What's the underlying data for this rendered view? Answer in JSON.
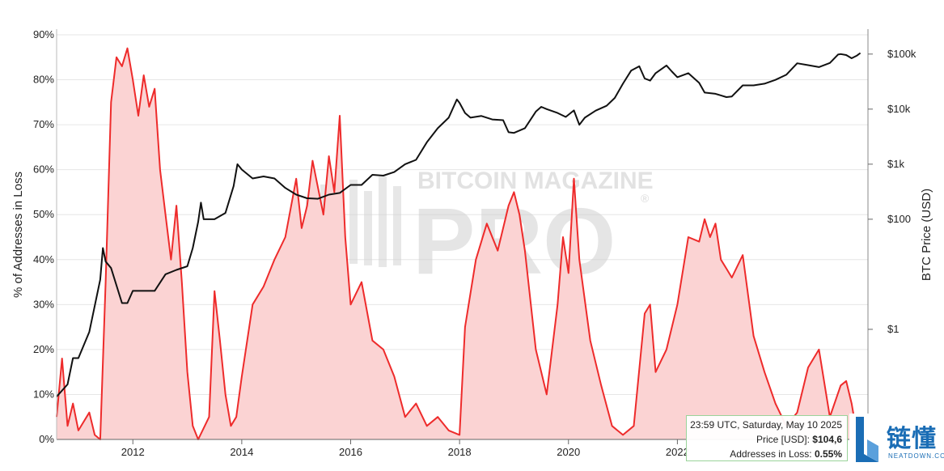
{
  "chart_data": {
    "type": "line",
    "title": "",
    "xlabel": "",
    "ylabel_left": "% of Addresses in Loss",
    "ylabel_right": "BTC Price (USD)",
    "x_ticks": [
      "2012",
      "2014",
      "2016",
      "2018",
      "2020",
      "2022"
    ],
    "x_range": [
      2010.6,
      2025.5
    ],
    "y_left_ticks": [
      "0%",
      "10%",
      "20%",
      "30%",
      "40%",
      "50%",
      "60%",
      "70%",
      "80%",
      "90%"
    ],
    "y_left_range": [
      0,
      90
    ],
    "y_right_ticks": [
      "$1",
      "$100",
      "$1k",
      "$10k",
      "$100k"
    ],
    "y_right_scale": "log",
    "grid": true,
    "series": [
      {
        "name": "% of Addresses in Loss",
        "color": "#ee2b2b",
        "fill": "#fbd3d3",
        "points": [
          [
            2010.6,
            5
          ],
          [
            2010.7,
            18
          ],
          [
            2010.8,
            3
          ],
          [
            2010.9,
            8
          ],
          [
            2011.0,
            2
          ],
          [
            2011.2,
            6
          ],
          [
            2011.3,
            1
          ],
          [
            2011.4,
            0
          ],
          [
            2011.5,
            35
          ],
          [
            2011.6,
            75
          ],
          [
            2011.7,
            85
          ],
          [
            2011.8,
            83
          ],
          [
            2011.9,
            87
          ],
          [
            2012.0,
            80
          ],
          [
            2012.1,
            72
          ],
          [
            2012.2,
            81
          ],
          [
            2012.3,
            74
          ],
          [
            2012.4,
            78
          ],
          [
            2012.5,
            60
          ],
          [
            2012.6,
            50
          ],
          [
            2012.7,
            40
          ],
          [
            2012.8,
            52
          ],
          [
            2012.9,
            35
          ],
          [
            2013.0,
            15
          ],
          [
            2013.1,
            3
          ],
          [
            2013.2,
            0
          ],
          [
            2013.4,
            5
          ],
          [
            2013.5,
            33
          ],
          [
            2013.6,
            22
          ],
          [
            2013.7,
            10
          ],
          [
            2013.8,
            3
          ],
          [
            2013.9,
            5
          ],
          [
            2014.0,
            14
          ],
          [
            2014.2,
            30
          ],
          [
            2014.4,
            34
          ],
          [
            2014.6,
            40
          ],
          [
            2014.8,
            45
          ],
          [
            2015.0,
            58
          ],
          [
            2015.1,
            47
          ],
          [
            2015.2,
            52
          ],
          [
            2015.3,
            62
          ],
          [
            2015.4,
            56
          ],
          [
            2015.5,
            50
          ],
          [
            2015.6,
            63
          ],
          [
            2015.7,
            55
          ],
          [
            2015.8,
            72
          ],
          [
            2015.9,
            45
          ],
          [
            2016.0,
            30
          ],
          [
            2016.2,
            35
          ],
          [
            2016.4,
            22
          ],
          [
            2016.6,
            20
          ],
          [
            2016.8,
            14
          ],
          [
            2017.0,
            5
          ],
          [
            2017.2,
            8
          ],
          [
            2017.4,
            3
          ],
          [
            2017.6,
            5
          ],
          [
            2017.8,
            2
          ],
          [
            2018.0,
            1
          ],
          [
            2018.1,
            25
          ],
          [
            2018.3,
            40
          ],
          [
            2018.5,
            48
          ],
          [
            2018.7,
            42
          ],
          [
            2018.9,
            52
          ],
          [
            2019.0,
            55
          ],
          [
            2019.1,
            50
          ],
          [
            2019.2,
            42
          ],
          [
            2019.4,
            20
          ],
          [
            2019.6,
            10
          ],
          [
            2019.8,
            30
          ],
          [
            2019.9,
            45
          ],
          [
            2020.0,
            37
          ],
          [
            2020.1,
            58
          ],
          [
            2020.2,
            40
          ],
          [
            2020.4,
            22
          ],
          [
            2020.6,
            12
          ],
          [
            2020.8,
            3
          ],
          [
            2021.0,
            1
          ],
          [
            2021.2,
            3
          ],
          [
            2021.4,
            28
          ],
          [
            2021.5,
            30
          ],
          [
            2021.6,
            15
          ],
          [
            2021.8,
            20
          ],
          [
            2022.0,
            30
          ],
          [
            2022.2,
            45
          ],
          [
            2022.4,
            44
          ],
          [
            2022.5,
            49
          ],
          [
            2022.6,
            45
          ],
          [
            2022.7,
            48
          ],
          [
            2022.8,
            40
          ],
          [
            2022.9,
            38
          ],
          [
            2023.0,
            36
          ],
          [
            2023.2,
            41
          ],
          [
            2023.4,
            23
          ],
          [
            2023.6,
            15
          ],
          [
            2023.8,
            8
          ],
          [
            2024.0,
            3
          ],
          [
            2024.2,
            6
          ],
          [
            2024.4,
            16
          ],
          [
            2024.6,
            20
          ],
          [
            2024.8,
            5
          ],
          [
            2025.0,
            12
          ],
          [
            2025.1,
            13
          ],
          [
            2025.2,
            8
          ],
          [
            2025.3,
            1
          ]
        ]
      },
      {
        "name": "BTC Price (USD)",
        "color": "#111111",
        "points": [
          [
            2010.6,
            0.06
          ],
          [
            2010.8,
            0.1
          ],
          [
            2010.9,
            0.3
          ],
          [
            2011.0,
            0.3
          ],
          [
            2011.2,
            0.9
          ],
          [
            2011.4,
            8
          ],
          [
            2011.45,
            30
          ],
          [
            2011.5,
            17
          ],
          [
            2011.6,
            13
          ],
          [
            2011.8,
            3
          ],
          [
            2011.9,
            3
          ],
          [
            2012.0,
            5
          ],
          [
            2012.2,
            5
          ],
          [
            2012.4,
            5
          ],
          [
            2012.6,
            10
          ],
          [
            2012.8,
            12
          ],
          [
            2013.0,
            14
          ],
          [
            2013.1,
            30
          ],
          [
            2013.2,
            90
          ],
          [
            2013.25,
            200
          ],
          [
            2013.3,
            100
          ],
          [
            2013.5,
            100
          ],
          [
            2013.7,
            130
          ],
          [
            2013.85,
            400
          ],
          [
            2013.92,
            1000
          ],
          [
            2014.0,
            800
          ],
          [
            2014.2,
            550
          ],
          [
            2014.4,
            600
          ],
          [
            2014.6,
            550
          ],
          [
            2014.8,
            370
          ],
          [
            2015.0,
            280
          ],
          [
            2015.2,
            240
          ],
          [
            2015.4,
            235
          ],
          [
            2015.6,
            280
          ],
          [
            2015.8,
            300
          ],
          [
            2016.0,
            420
          ],
          [
            2016.2,
            420
          ],
          [
            2016.4,
            640
          ],
          [
            2016.6,
            620
          ],
          [
            2016.8,
            720
          ],
          [
            2017.0,
            1000
          ],
          [
            2017.2,
            1200
          ],
          [
            2017.4,
            2500
          ],
          [
            2017.6,
            4500
          ],
          [
            2017.8,
            7000
          ],
          [
            2017.95,
            15000
          ],
          [
            2018.0,
            13000
          ],
          [
            2018.1,
            8500
          ],
          [
            2018.2,
            7000
          ],
          [
            2018.4,
            7500
          ],
          [
            2018.6,
            6500
          ],
          [
            2018.8,
            6300
          ],
          [
            2018.9,
            3800
          ],
          [
            2019.0,
            3700
          ],
          [
            2019.2,
            4500
          ],
          [
            2019.4,
            9000
          ],
          [
            2019.5,
            11000
          ],
          [
            2019.6,
            10000
          ],
          [
            2019.8,
            8500
          ],
          [
            2019.95,
            7200
          ],
          [
            2020.1,
            9500
          ],
          [
            2020.2,
            5200
          ],
          [
            2020.3,
            7000
          ],
          [
            2020.5,
            9400
          ],
          [
            2020.7,
            11500
          ],
          [
            2020.85,
            16000
          ],
          [
            2021.0,
            29000
          ],
          [
            2021.15,
            50000
          ],
          [
            2021.3,
            60000
          ],
          [
            2021.4,
            36000
          ],
          [
            2021.5,
            33000
          ],
          [
            2021.6,
            45000
          ],
          [
            2021.8,
            62000
          ],
          [
            2021.9,
            48000
          ],
          [
            2022.0,
            38000
          ],
          [
            2022.2,
            45000
          ],
          [
            2022.4,
            30000
          ],
          [
            2022.5,
            20000
          ],
          [
            2022.7,
            19000
          ],
          [
            2022.9,
            16500
          ],
          [
            2023.0,
            17000
          ],
          [
            2023.2,
            27000
          ],
          [
            2023.4,
            27000
          ],
          [
            2023.6,
            29000
          ],
          [
            2023.8,
            34000
          ],
          [
            2024.0,
            42000
          ],
          [
            2024.2,
            68000
          ],
          [
            2024.4,
            63000
          ],
          [
            2024.6,
            58000
          ],
          [
            2024.8,
            69000
          ],
          [
            2024.95,
            98000
          ],
          [
            2025.0,
            100000
          ],
          [
            2025.1,
            96000
          ],
          [
            2025.2,
            84000
          ],
          [
            2025.3,
            94000
          ],
          [
            2025.36,
            104600
          ]
        ]
      }
    ],
    "tooltip": {
      "line1": "23:59 UTC, Saturday, May 10 2025",
      "price_label": "Price [USD]: ",
      "price_value": "$104,6",
      "loss_label": "Addresses in Loss: ",
      "loss_value": "0.55%"
    }
  },
  "watermark": {
    "line1": "BITCOIN MAGAZINE",
    "line2": "PRO",
    "mark": "®"
  },
  "brand": {
    "cn": "链懂",
    "en": "NEATDOWN.COM"
  }
}
